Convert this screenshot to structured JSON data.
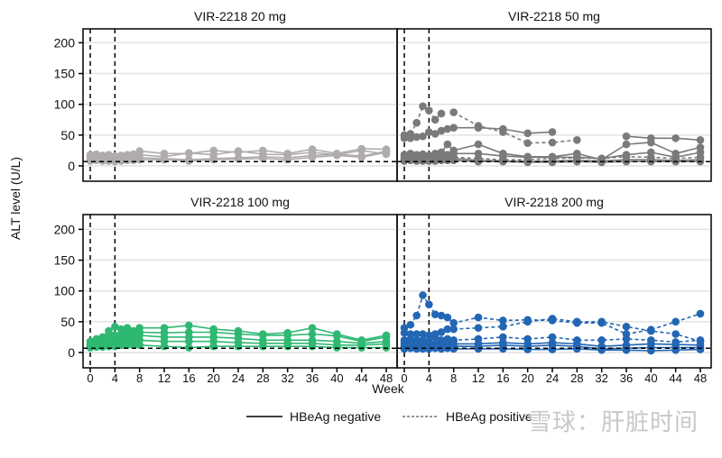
{
  "chart_data": {
    "type": "line",
    "ylabel": "ALT level (U/L)",
    "xlabel": "Week",
    "ylim": [
      -25,
      225
    ],
    "yticks": [
      0,
      50,
      100,
      150,
      200
    ],
    "xlim": [
      -1,
      49
    ],
    "xticks": [
      0,
      4,
      8,
      12,
      16,
      20,
      24,
      28,
      32,
      36,
      40,
      44,
      48
    ],
    "grid": "horizontal",
    "reference_lines": {
      "vertical_weeks": [
        0,
        4
      ],
      "horizontal_value": 7
    },
    "legend": {
      "placement": "bottom",
      "entries": [
        {
          "label": "HBeAg negative",
          "style": "solid"
        },
        {
          "label": "HBeAg positive",
          "style": "dashed"
        }
      ]
    },
    "weeks": [
      0,
      1,
      2,
      3,
      4,
      5,
      6,
      7,
      8,
      12,
      16,
      20,
      24,
      28,
      32,
      36,
      40,
      44,
      48
    ],
    "panels": [
      {
        "title": "VIR-2218 20 mg",
        "color": "#b0acac",
        "series": [
          {
            "style": "solid",
            "values": [
              18,
              19,
              17,
              18,
              16,
              17,
              18,
              19,
              24,
              20,
              20,
              25,
              22,
              25,
              20,
              27,
              20,
              28,
              27
            ]
          },
          {
            "style": "solid",
            "values": [
              14,
              15,
              13,
              14,
              12,
              14,
              15,
              16,
              18,
              15,
              21,
              18,
              24,
              19,
              18,
              22,
              18,
              25,
              19
            ]
          },
          {
            "style": "solid",
            "values": [
              10,
              11,
              10,
              9,
              10,
              11,
              12,
              12,
              13,
              12,
              10,
              12,
              13,
              15,
              13,
              17,
              19,
              16,
              24
            ]
          },
          {
            "style": "solid",
            "values": [
              8,
              9,
              8,
              8,
              7,
              8,
              9,
              9,
              10,
              10,
              8,
              10,
              11,
              12,
              10,
              14,
              17,
              14,
              22
            ]
          }
        ]
      },
      {
        "title": "VIR-2218 50 mg",
        "color": "#7a7a7a",
        "series": [
          {
            "style": "dashed",
            "values": [
              50,
              52,
              70,
              97,
              90,
              75,
              85,
              null,
              87,
              65,
              55,
              37,
              38,
              42,
              null,
              null,
              null,
              null,
              null
            ]
          },
          {
            "style": "solid",
            "values": [
              45,
              45,
              47,
              48,
              55,
              52,
              57,
              60,
              62,
              62,
              60,
              53,
              55,
              null,
              null,
              48,
              45,
              45,
              42
            ]
          },
          {
            "style": "solid",
            "values": [
              18,
              20,
              18,
              19,
              17,
              20,
              22,
              35,
              25,
              35,
              20,
              15,
              15,
              20,
              10,
              35,
              38,
              20,
              30
            ]
          },
          {
            "style": "solid",
            "values": [
              15,
              16,
              15,
              14,
              15,
              14,
              16,
              18,
              20,
              20,
              16,
              14,
              14,
              14,
              12,
              18,
              22,
              14,
              22
            ]
          },
          {
            "style": "dashed",
            "values": [
              12,
              13,
              12,
              11,
              12,
              12,
              13,
              13,
              14,
              12,
              10,
              10,
              12,
              13,
              12,
              15,
              14,
              12,
              14
            ]
          },
          {
            "style": "solid",
            "values": [
              10,
              11,
              10,
              9,
              10,
              10,
              11,
              11,
              12,
              9,
              8,
              7,
              8,
              9,
              8,
              10,
              10,
              9,
              10
            ]
          },
          {
            "style": "solid",
            "values": [
              8,
              9,
              8,
              8,
              8,
              8,
              9,
              9,
              9,
              7,
              7,
              6,
              6,
              7,
              6,
              7,
              7,
              7,
              7
            ]
          }
        ]
      },
      {
        "title": "VIR-2218 100 mg",
        "color": "#2eb872",
        "series": [
          {
            "style": "solid",
            "values": [
              18,
              22,
              25,
              35,
              42,
              38,
              40,
              35,
              40,
              40,
              44,
              38,
              35,
              30,
              32,
              40,
              30,
              20,
              28
            ]
          },
          {
            "style": "solid",
            "values": [
              15,
              17,
              20,
              30,
              28,
              30,
              32,
              30,
              33,
              32,
              33,
              33,
              30,
              28,
              28,
              30,
              27,
              18,
              25
            ]
          },
          {
            "style": "solid",
            "values": [
              12,
              14,
              15,
              20,
              22,
              25,
              28,
              25,
              28,
              25,
              25,
              25,
              23,
              20,
              20,
              20,
              18,
              15,
              18
            ]
          },
          {
            "style": "solid",
            "values": [
              10,
              12,
              12,
              15,
              15,
              18,
              20,
              18,
              20,
              18,
              18,
              18,
              16,
              15,
              15,
              15,
              12,
              12,
              14
            ]
          },
          {
            "style": "solid",
            "values": [
              8,
              9,
              9,
              10,
              10,
              12,
              12,
              12,
              12,
              10,
              8,
              10,
              10,
              10,
              10,
              10,
              8,
              8,
              8
            ]
          }
        ]
      },
      {
        "title": "VIR-2218 200 mg",
        "color": "#2266b4",
        "series": [
          {
            "style": "dashed",
            "values": [
              40,
              45,
              60,
              93,
              78,
              62,
              60,
              57,
              48,
              57,
              52,
              53,
              52,
              48,
              48,
              30,
              37,
              50,
              63
            ]
          },
          {
            "style": "dashed",
            "values": [
              32,
              30,
              30,
              30,
              28,
              30,
              33,
              38,
              38,
              40,
              42,
              50,
              55,
              50,
              50,
              42,
              35,
              30,
              18
            ]
          },
          {
            "style": "dashed",
            "values": [
              20,
              22,
              20,
              20,
              18,
              25,
              20,
              22,
              20,
              22,
              25,
              22,
              25,
              20,
              20,
              22,
              20,
              17,
              20
            ]
          },
          {
            "style": "solid",
            "values": [
              14,
              15,
              13,
              14,
              15,
              14,
              15,
              15,
              14,
              14,
              16,
              14,
              16,
              14,
              10,
              12,
              14,
              13,
              12
            ]
          },
          {
            "style": "solid",
            "values": [
              10,
              11,
              10,
              9,
              10,
              10,
              11,
              10,
              10,
              10,
              12,
              10,
              12,
              10,
              6,
              7,
              8,
              8,
              8
            ]
          },
          {
            "style": "solid",
            "values": [
              6,
              7,
              6,
              6,
              6,
              7,
              6,
              7,
              6,
              6,
              6,
              5,
              5,
              6,
              4,
              4,
              3,
              4,
              5
            ]
          }
        ]
      }
    ]
  },
  "watermark": "雪球：肝脏时间"
}
